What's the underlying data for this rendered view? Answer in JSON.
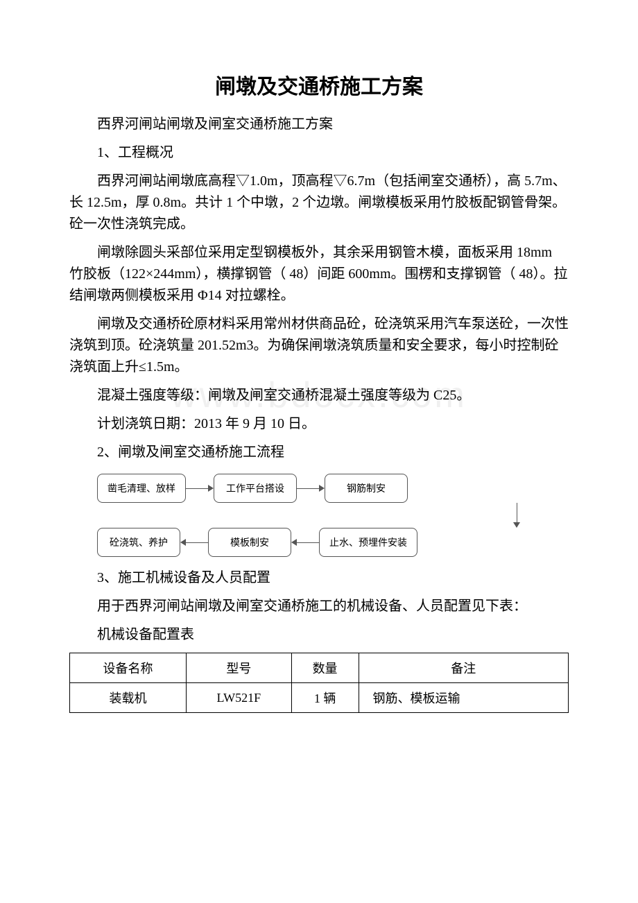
{
  "title": "闸墩及交通桥施工方案",
  "subtitle": "西界河闸站闸墩及闸室交通桥施工方案",
  "watermark": "www.bdocx.com",
  "sections": {
    "s1_heading": "1、工程概况",
    "s1_p1": "西界河闸站闸墩底高程▽1.0m，顶高程▽6.7m（包括闸室交通桥），高 5.7m、长 12.5m，厚 0.8m。共计 1 个中墩，2 个边墩。闸墩模板采用竹胶板配钢管骨架。砼一次性浇筑完成。",
    "s1_p2": "闸墩除圆头采部位采用定型钢模板外，其余采用钢管木模，面板采用 18mm 竹胶板（122×244mm），横撑钢管（ 48）间距 600mm。围楞和支撑钢管（ 48）。拉结闸墩两侧模板采用 Φ14 对拉螺栓。",
    "s1_p3": "闸墩及交通桥砼原材料采用常州材供商品砼，砼浇筑采用汽车泵送砼，一次性浇筑到顶。砼浇筑量 201.52m3。为确保闸墩浇筑质量和安全要求，每小时控制砼浇筑面上升≤1.5m。",
    "s1_p4": "混凝土强度等级：闸墩及闸室交通桥混凝土强度等级为 C25。",
    "s1_p5": "计划浇筑日期：2013 年 9 月 10 日。",
    "s2_heading": "2、闸墩及闸室交通桥施工流程",
    "s3_heading": "3、施工机械设备及人员配置",
    "s3_p1": "用于西界河闸站闸墩及闸室交通桥施工的机械设备、人员配置见下表：",
    "s3_table_caption": "机械设备配置表"
  },
  "flowchart": {
    "box1": "凿毛清理、放样",
    "box2": "工作平台搭设",
    "box3": "钢筋制安",
    "box4": "止水、预埋件安装",
    "box5": "模板制安",
    "box6": "砼浇筑、养护"
  },
  "equip_table": {
    "headers": [
      "设备名称",
      "型号",
      "数量",
      "备注"
    ],
    "rows": [
      [
        "装载机",
        "LW521F",
        "1 辆",
        "钢筋、模板运输"
      ]
    ]
  }
}
